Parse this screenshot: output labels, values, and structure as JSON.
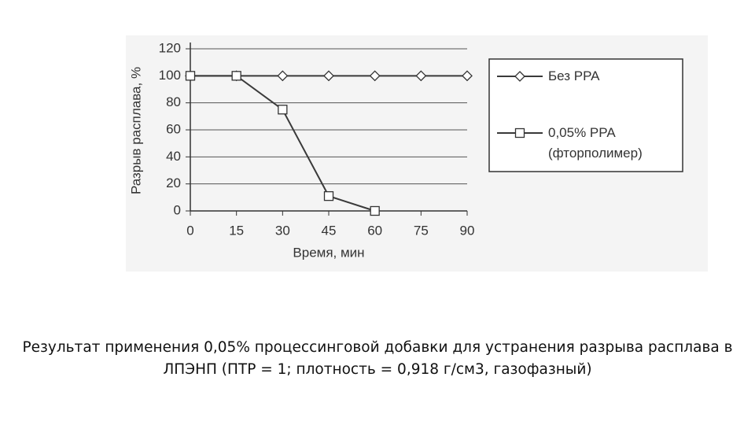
{
  "chart_data": {
    "type": "line",
    "x_label": "Время, мин",
    "y_label": "Разрыв расплава, %",
    "x": [
      0,
      15,
      30,
      45,
      60,
      75,
      90
    ],
    "series": [
      {
        "name": "Без PPA",
        "color": "#3a3a3a",
        "marker": "diamond",
        "values": [
          100,
          100,
          100,
          100,
          100,
          100,
          100
        ]
      },
      {
        "name": "0,05% PPA (фторполимер)",
        "color": "#3a3a3a",
        "marker": "square",
        "values": [
          100,
          100,
          75,
          11,
          0,
          null,
          null
        ]
      }
    ],
    "xlim": [
      0,
      90
    ],
    "xticks": [
      0,
      15,
      30,
      45,
      60,
      75,
      90
    ],
    "ylim": [
      0,
      120
    ],
    "yticks": [
      0,
      20,
      40,
      60,
      80,
      100,
      120
    ],
    "grid": true
  },
  "caption": "Результат применения 0,05% процессинговой добавки для устранения разрыва расплава в ЛПЭНП (ПТР = 1; плотность = 0,918 г/см3, газофазный)"
}
